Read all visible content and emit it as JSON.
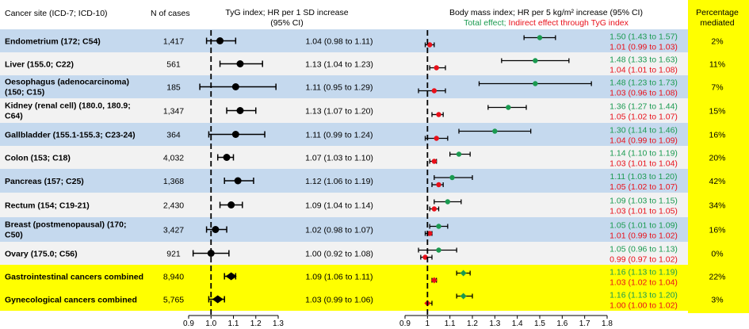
{
  "headers": {
    "cancer_site": "Cancer site (ICD-7; ICD-10)",
    "n_cases": "N of cases",
    "tyg_line1": "TyG index; HR per 1 SD increase",
    "tyg_line2": "(95% CI)",
    "bmi_title": "Body mass index; HR per 5 kg/m² increase (95% CI)",
    "total_effect_label": "Total effect;",
    "indirect_effect_label": " Indirect effect through TyG index",
    "pct_line1": "Percentage",
    "pct_line2": "mediated"
  },
  "colors": {
    "band_blue": "#c5d9ee",
    "band_light": "#f2f2f2",
    "highlight_yellow": "#ffff00",
    "total_effect": "#1a9a50",
    "indirect_effect": "#e8101a",
    "tyg_marker": "#000000"
  },
  "chart_data": {
    "type": "forest",
    "tyg_axis": {
      "ticks": [
        "0.9",
        "1.0",
        "1.1",
        "1.2",
        "1.3"
      ],
      "range": [
        0.9,
        1.3
      ],
      "reference": 1.0
    },
    "bmi_axis": {
      "ticks": [
        "0.9",
        "1",
        "1.1",
        "1.2",
        "1.3",
        "1.4",
        "1.5",
        "1.6",
        "1.7",
        "1.8"
      ],
      "range": [
        0.9,
        1.8
      ],
      "reference": 1.0
    },
    "rows": [
      {
        "site_lines": [
          "Endometrium (172; C54)"
        ],
        "n": "1,417",
        "tyg": {
          "hr": 1.04,
          "lo": 0.98,
          "hi": 1.11,
          "label": "1.04 (0.98 to 1.11)"
        },
        "total": {
          "hr": 1.5,
          "lo": 1.43,
          "hi": 1.57,
          "label": "1.50 (1.43 to 1.57)"
        },
        "indirect": {
          "hr": 1.01,
          "lo": 0.99,
          "hi": 1.03,
          "label": "1.01 (0.99 to 1.03)"
        },
        "pct": "2%",
        "band": "blue",
        "combined": false
      },
      {
        "site_lines": [
          "Liver (155.0; C22)"
        ],
        "n": "561",
        "tyg": {
          "hr": 1.13,
          "lo": 1.04,
          "hi": 1.23,
          "label": "1.13 (1.04 to 1.23)"
        },
        "total": {
          "hr": 1.48,
          "lo": 1.33,
          "hi": 1.63,
          "label": "1.48 (1.33 to 1.63)"
        },
        "indirect": {
          "hr": 1.04,
          "lo": 1.01,
          "hi": 1.08,
          "label": "1.04 (1.01 to 1.08)"
        },
        "pct": "11%",
        "band": "light",
        "combined": false
      },
      {
        "site_lines": [
          "Oesophagus (adenocarcinoma)",
          "(150; C15)"
        ],
        "n": "185",
        "tyg": {
          "hr": 1.11,
          "lo": 0.95,
          "hi": 1.29,
          "label": "1.11 (0.95 to 1.29)"
        },
        "total": {
          "hr": 1.48,
          "lo": 1.23,
          "hi": 1.73,
          "label": "1.48 (1.23 to 1.73)"
        },
        "indirect": {
          "hr": 1.03,
          "lo": 0.96,
          "hi": 1.08,
          "label": "1.03 (0.96 to 1.08)"
        },
        "pct": "7%",
        "band": "blue",
        "combined": false
      },
      {
        "site_lines": [
          "Kidney (renal cell) (180.0, 180.9;",
          "C64)"
        ],
        "n": "1,347",
        "tyg": {
          "hr": 1.13,
          "lo": 1.07,
          "hi": 1.2,
          "label": "1.13 (1.07 to 1.20)"
        },
        "total": {
          "hr": 1.36,
          "lo": 1.27,
          "hi": 1.44,
          "label": "1.36 (1.27 to 1.44)"
        },
        "indirect": {
          "hr": 1.05,
          "lo": 1.02,
          "hi": 1.07,
          "label": "1.05 (1.02 to 1.07)"
        },
        "pct": "15%",
        "band": "light",
        "combined": false
      },
      {
        "site_lines": [
          "Gallbladder (155.1-155.3; C23-24)"
        ],
        "n": "364",
        "tyg": {
          "hr": 1.11,
          "lo": 0.99,
          "hi": 1.24,
          "label": "1.11 (0.99 to 1.24)"
        },
        "total": {
          "hr": 1.3,
          "lo": 1.14,
          "hi": 1.46,
          "label": "1.30 (1.14 to 1.46)"
        },
        "indirect": {
          "hr": 1.04,
          "lo": 0.99,
          "hi": 1.09,
          "label": "1.04 (0.99 to 1.09)"
        },
        "pct": "16%",
        "band": "blue",
        "combined": false
      },
      {
        "site_lines": [
          "Colon (153; C18)"
        ],
        "n": "4,032",
        "tyg": {
          "hr": 1.07,
          "lo": 1.03,
          "hi": 1.1,
          "label": "1.07 (1.03 to 1.10)"
        },
        "total": {
          "hr": 1.14,
          "lo": 1.1,
          "hi": 1.19,
          "label": "1.14 (1.10 to 1.19)"
        },
        "indirect": {
          "hr": 1.03,
          "lo": 1.01,
          "hi": 1.04,
          "label": "1.03 (1.01 to 1.04)"
        },
        "pct": "20%",
        "band": "light",
        "combined": false
      },
      {
        "site_lines": [
          "Pancreas (157; C25)"
        ],
        "n": "1,368",
        "tyg": {
          "hr": 1.12,
          "lo": 1.06,
          "hi": 1.19,
          "label": "1.12 (1.06 to 1.19)"
        },
        "total": {
          "hr": 1.11,
          "lo": 1.03,
          "hi": 1.2,
          "label": "1.11 (1.03 to 1.20)"
        },
        "indirect": {
          "hr": 1.05,
          "lo": 1.02,
          "hi": 1.07,
          "label": "1.05 (1.02 to 1.07)"
        },
        "pct": "42%",
        "band": "blue",
        "combined": false
      },
      {
        "site_lines": [
          "Rectum (154; C19-21)"
        ],
        "n": "2,430",
        "tyg": {
          "hr": 1.09,
          "lo": 1.04,
          "hi": 1.14,
          "label": "1.09 (1.04 to 1.14)"
        },
        "total": {
          "hr": 1.09,
          "lo": 1.03,
          "hi": 1.15,
          "label": "1.09 (1.03 to 1.15)"
        },
        "indirect": {
          "hr": 1.03,
          "lo": 1.01,
          "hi": 1.05,
          "label": "1.03 (1.01 to 1.05)"
        },
        "pct": "34%",
        "band": "light",
        "combined": false
      },
      {
        "site_lines": [
          "Breast (postmenopausal) (170;",
          "C50)"
        ],
        "n": "3,427",
        "tyg": {
          "hr": 1.02,
          "lo": 0.98,
          "hi": 1.07,
          "label": "1.02 (0.98 to 1.07)"
        },
        "total": {
          "hr": 1.05,
          "lo": 1.01,
          "hi": 1.09,
          "label": "1.05 (1.01 to 1.09)"
        },
        "indirect": {
          "hr": 1.01,
          "lo": 0.99,
          "hi": 1.02,
          "label": "1.01 (0.99 to 1.02)"
        },
        "pct": "16%",
        "band": "blue",
        "combined": false
      },
      {
        "site_lines": [
          "Ovary (175.0; C56)"
        ],
        "n": "921",
        "tyg": {
          "hr": 1.0,
          "lo": 0.92,
          "hi": 1.08,
          "label": "1.00 (0.92 to 1.08)"
        },
        "total": {
          "hr": 1.05,
          "lo": 0.96,
          "hi": 1.13,
          "label": "1.05 (0.96 to 1.13)"
        },
        "indirect": {
          "hr": 0.99,
          "lo": 0.97,
          "hi": 1.02,
          "label": "0.99 (0.97 to 1.02)"
        },
        "pct": "0%",
        "band": "light",
        "combined": false
      },
      {
        "site_lines": [
          "Gastrointestinal cancers combined"
        ],
        "n": "8,940",
        "tyg": {
          "hr": 1.09,
          "lo": 1.06,
          "hi": 1.11,
          "label": "1.09 (1.06 to 1.11)"
        },
        "total": {
          "hr": 1.16,
          "lo": 1.13,
          "hi": 1.19,
          "label": "1.16 (1.13 to 1.19)"
        },
        "indirect": {
          "hr": 1.03,
          "lo": 1.02,
          "hi": 1.04,
          "label": "1.03 (1.02 to 1.04)"
        },
        "pct": "22%",
        "band": "yellow",
        "combined": true
      },
      {
        "site_lines": [
          "Gynecological cancers combined"
        ],
        "n": "5,765",
        "tyg": {
          "hr": 1.03,
          "lo": 0.99,
          "hi": 1.06,
          "label": "1.03 (0.99 to 1.06)"
        },
        "total": {
          "hr": 1.16,
          "lo": 1.13,
          "hi": 1.2,
          "label": "1.16 (1.13 to 1.20)"
        },
        "indirect": {
          "hr": 1.0,
          "lo": 1.0,
          "hi": 1.02,
          "label": "1.00 (1.00 to 1.02)"
        },
        "pct": "3%",
        "band": "yellow",
        "combined": true
      }
    ]
  }
}
